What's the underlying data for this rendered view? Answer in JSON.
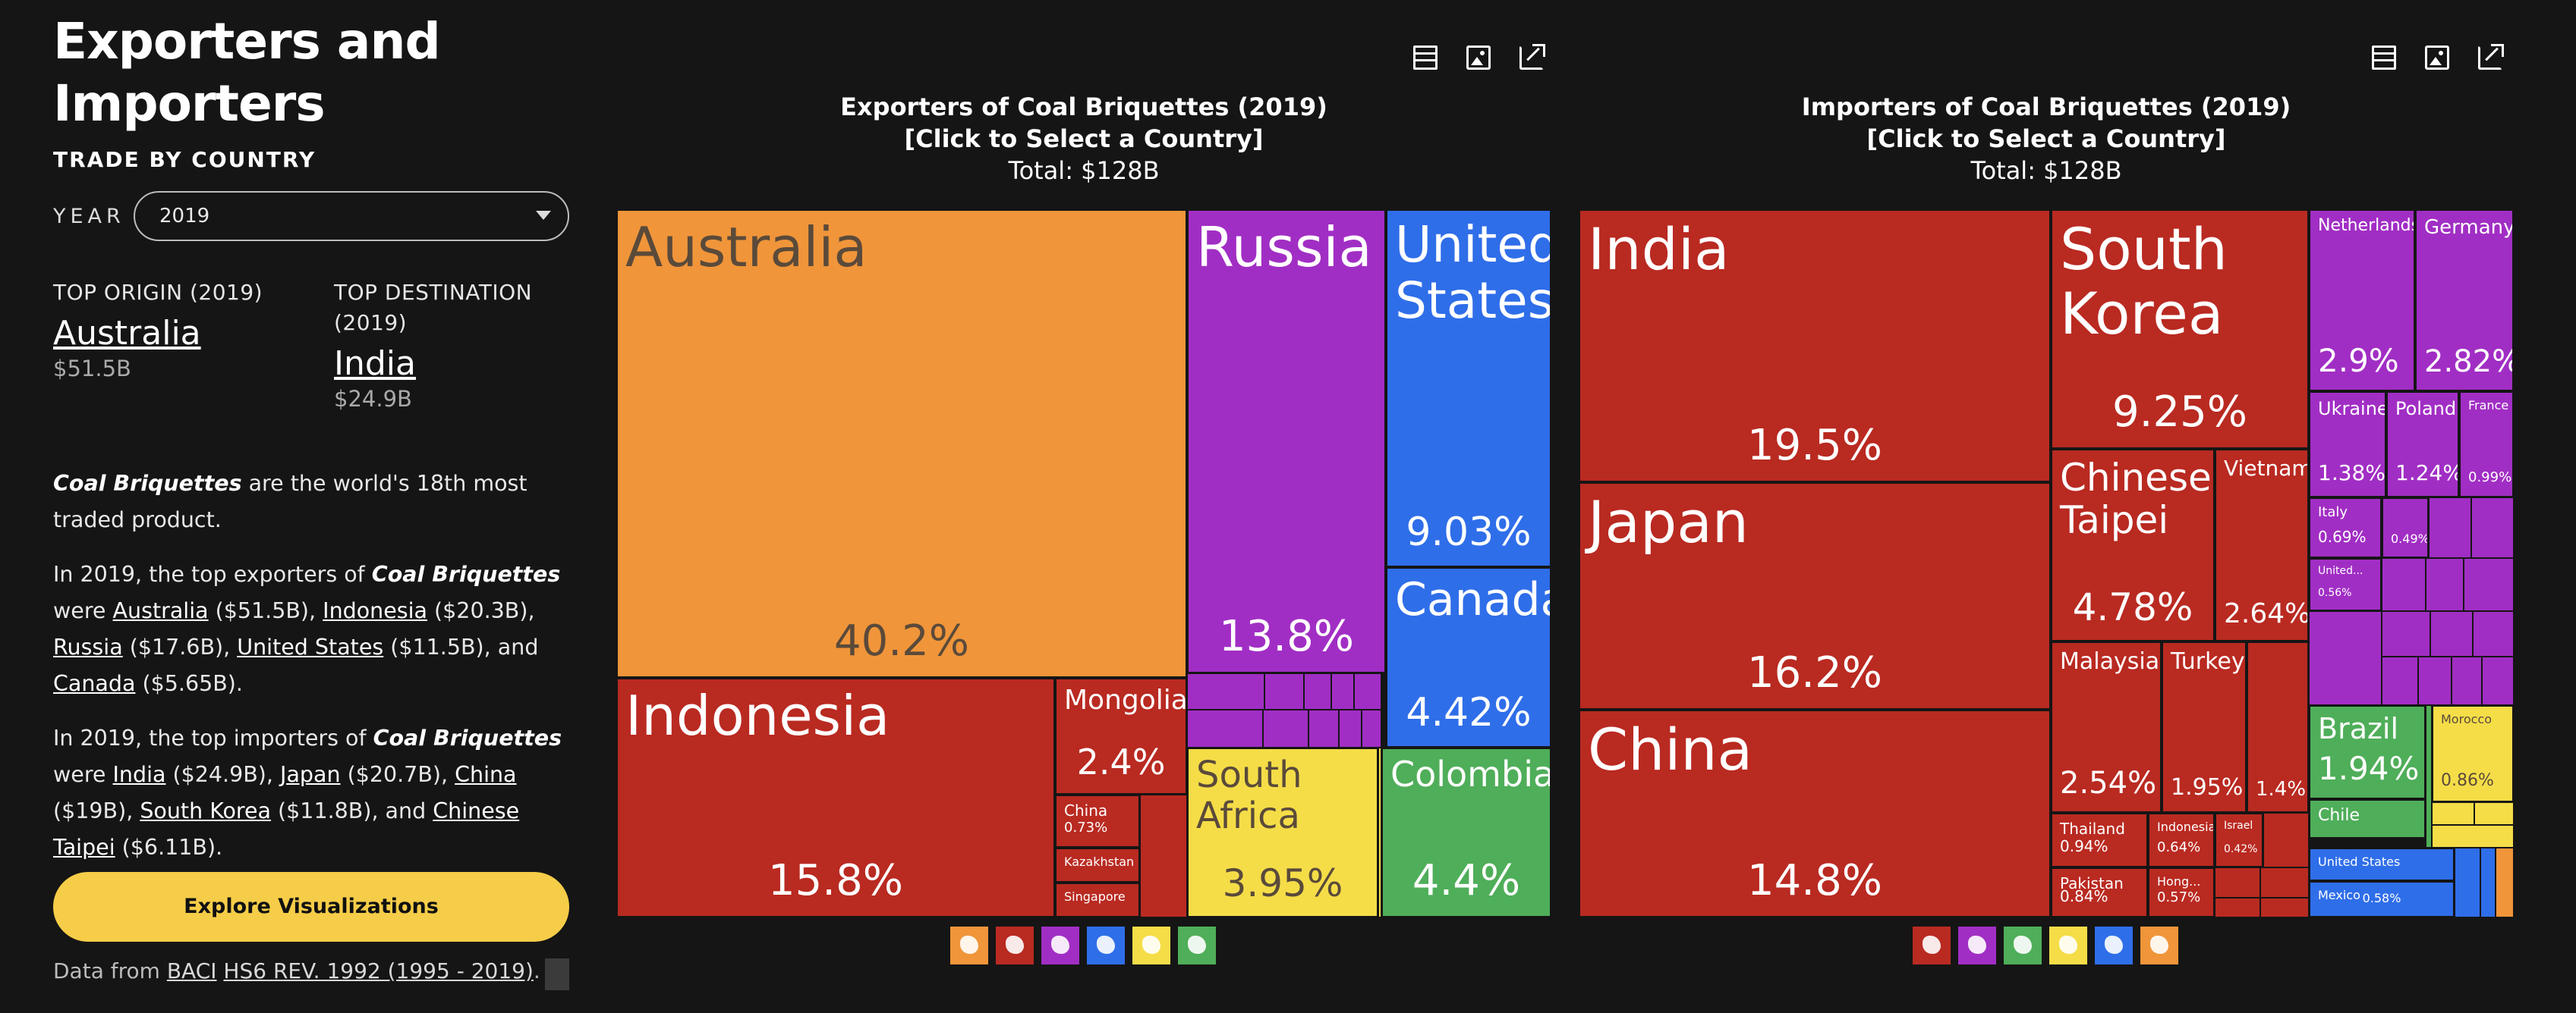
{
  "sidebar": {
    "title": "Exporters and Importers",
    "subtitle": "TRADE BY COUNTRY",
    "year_label": "YEAR",
    "year_value": "2019",
    "top_origin": {
      "label": "TOP ORIGIN (2019)",
      "name": "Australia",
      "value": "$51.5B"
    },
    "top_destination": {
      "label": "TOP DESTINATION (2019)",
      "name": "India",
      "value": "$24.9B"
    },
    "p1": {
      "product": "Coal Briquettes",
      "text": " are the world's 18th most traded product."
    },
    "p2": {
      "intro": "In 2019, the top exporters of ",
      "product": "Coal Briquettes",
      "were": " were ",
      "items": [
        {
          "name": "Australia",
          "value": " ($51.5B), "
        },
        {
          "name": "Indonesia",
          "value": " ($20.3B), "
        },
        {
          "name": "Russia",
          "value": " ($17.6B), "
        },
        {
          "name": "United States",
          "value": " ($11.5B), and "
        },
        {
          "name": "Canada",
          "value": " ($5.65B)."
        }
      ]
    },
    "p3": {
      "intro": "In 2019, the top importers of ",
      "product": "Coal Briquettes",
      "were": " were ",
      "items": [
        {
          "name": "India",
          "value": " ($24.9B), "
        },
        {
          "name": "Japan",
          "value": " ($20.7B), "
        },
        {
          "name": "China",
          "value": " ($19B), "
        },
        {
          "name": "South Korea",
          "value": " ($11.8B), and "
        },
        {
          "name": "Chinese Taipei",
          "value": " ($6.11B)."
        }
      ]
    },
    "explore_button": "Explore Visualizations",
    "source": {
      "prefix": "Data from ",
      "link1": "BACI",
      "space": " ",
      "link2": "HS6 REV. 1992 (1995 - 2019)",
      "suffix": "."
    }
  },
  "colors": {
    "asia": "#b92a21",
    "oceania": "#f0953a",
    "europe": "#a12ec4",
    "north_america": "#2f6ee9",
    "africa": "#f5dd48",
    "south_america": "#4fae59",
    "accent": "#f6cd48"
  },
  "exporters": {
    "title_line1": "Exporters of Coal Briquettes (2019)",
    "title_line2": "[Click to Select a Country]",
    "title_line3": "Total: $128B",
    "chart_data": {
      "type": "treemap",
      "title": "Exporters of Coal Briquettes (2019)",
      "total": "$128B",
      "items": [
        {
          "name": "Australia",
          "share": "40.2%",
          "region": "oceania"
        },
        {
          "name": "Indonesia",
          "share": "15.8%",
          "region": "asia"
        },
        {
          "name": "Russia",
          "share": "13.8%",
          "region": "europe"
        },
        {
          "name": "United States",
          "share": "9.03%",
          "region": "north_america"
        },
        {
          "name": "Canada",
          "share": "4.42%",
          "region": "north_america"
        },
        {
          "name": "Colombia",
          "share": "4.4%",
          "region": "south_america"
        },
        {
          "name": "South Africa",
          "share": "3.95%",
          "region": "africa"
        },
        {
          "name": "Mongolia",
          "share": "2.4%",
          "region": "asia"
        },
        {
          "name": "China",
          "share": "0.73%",
          "region": "asia"
        },
        {
          "name": "Kazakhstan",
          "share": "",
          "region": "asia"
        },
        {
          "name": "Singapore",
          "share": "",
          "region": "asia"
        }
      ]
    },
    "legend": [
      "oceania-icon",
      "asia-icon",
      "europe-icon",
      "north-america-icon",
      "africa-icon",
      "south-america-icon"
    ]
  },
  "importers": {
    "title_line1": "Importers of Coal Briquettes (2019)",
    "title_line2": "[Click to Select a Country]",
    "title_line3": "Total: $128B",
    "chart_data": {
      "type": "treemap",
      "title": "Importers of Coal Briquettes (2019)",
      "total": "$128B",
      "items": [
        {
          "name": "India",
          "share": "19.5%",
          "region": "asia"
        },
        {
          "name": "Japan",
          "share": "16.2%",
          "region": "asia"
        },
        {
          "name": "China",
          "share": "14.8%",
          "region": "asia"
        },
        {
          "name": "South Korea",
          "share": "9.25%",
          "region": "asia"
        },
        {
          "name": "Chinese Taipei",
          "share": "4.78%",
          "region": "asia"
        },
        {
          "name": "Vietnam",
          "share": "2.64%",
          "region": "asia"
        },
        {
          "name": "Malaysia",
          "share": "2.54%",
          "region": "asia"
        },
        {
          "name": "Turkey",
          "share": "1.95%",
          "region": "asia"
        },
        {
          "name": "",
          "share": "1.4%",
          "region": "asia"
        },
        {
          "name": "Thailand",
          "share": "0.94%",
          "region": "asia"
        },
        {
          "name": "Indonesia",
          "share": "0.64%",
          "region": "asia"
        },
        {
          "name": "Israel",
          "share": "0.42%",
          "region": "asia"
        },
        {
          "name": "Pakistan",
          "share": "0.84%",
          "region": "asia"
        },
        {
          "name": "Hong...",
          "share": "0.57%",
          "region": "asia"
        },
        {
          "name": "Netherlands",
          "share": "2.9%",
          "region": "europe"
        },
        {
          "name": "Germany",
          "share": "2.82%",
          "region": "europe"
        },
        {
          "name": "Ukraine",
          "share": "1.38%",
          "region": "europe"
        },
        {
          "name": "Poland",
          "share": "1.24%",
          "region": "europe"
        },
        {
          "name": "France",
          "share": "0.99%",
          "region": "europe"
        },
        {
          "name": "Italy",
          "share": "0.69%",
          "region": "europe"
        },
        {
          "name": "",
          "share": "0.49%",
          "region": "europe"
        },
        {
          "name": "United...",
          "share": "0.56%",
          "region": "europe"
        },
        {
          "name": "Brazil",
          "share": "1.94%",
          "region": "south_america"
        },
        {
          "name": "Chile",
          "share": "",
          "region": "south_america"
        },
        {
          "name": "Morocco",
          "share": "0.86%",
          "region": "africa"
        },
        {
          "name": "United States",
          "share": "",
          "region": "north_america"
        },
        {
          "name": "Mexico",
          "share": "0.58%",
          "region": "north_america"
        }
      ]
    },
    "legend": [
      "asia-icon",
      "europe-icon",
      "south-america-icon",
      "africa-icon",
      "north-america-icon",
      "oceania-icon"
    ]
  }
}
